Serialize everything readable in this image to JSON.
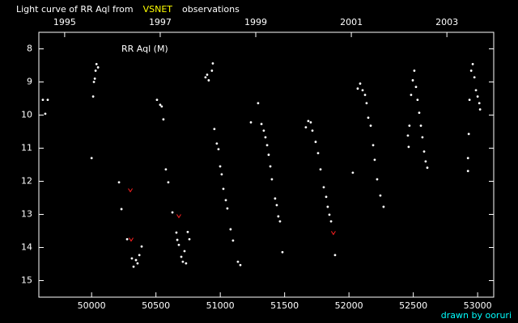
{
  "chart_data": {
    "type": "scatter",
    "title_parts": [
      {
        "text": "Light curve of RR Aql from",
        "color": "#ffffff"
      },
      {
        "text": "VSNET",
        "color": "#ffff00"
      },
      {
        "text": "observations",
        "color": "#ffffff"
      }
    ],
    "annotation": "RR Aql (M)",
    "credit": "drawn by ooruri",
    "credit_color": "#00ffff",
    "xlim": [
      49590,
      53125
    ],
    "xticks": [
      50000,
      50500,
      51000,
      51500,
      52000,
      52500,
      53000
    ],
    "x2lim": [
      1994.46,
      2003.98
    ],
    "x2ticks": [
      1995,
      1997,
      1999,
      2001,
      2003
    ],
    "ylim": [
      15.5,
      7.5
    ],
    "yticks": [
      8,
      9,
      10,
      11,
      12,
      13,
      14,
      15
    ],
    "series": [
      {
        "color": "#ffffff",
        "marker": "dot",
        "x": [
          49621,
          49659,
          49640,
          50000,
          50012,
          50018,
          50025,
          50031,
          50038,
          50050,
          50213,
          50232,
          50276,
          50313,
          50326,
          50345,
          50357,
          50371,
          50389,
          50508,
          50533,
          50545,
          50558,
          50577,
          50596,
          50628,
          50659,
          50666,
          50678,
          50697,
          50709,
          50722,
          50734,
          50747,
          50760,
          50885,
          50898,
          50910,
          50935,
          50942,
          50954,
          50973,
          50986,
          50999,
          51011,
          51024,
          51043,
          51055,
          51080,
          51099,
          51137,
          51156,
          51238,
          51294,
          51320,
          51338,
          51351,
          51364,
          51376,
          51389,
          51401,
          51426,
          51439,
          51451,
          51464,
          51483,
          51665,
          51684,
          51703,
          51716,
          51741,
          51760,
          51779,
          51804,
          51823,
          51835,
          51848,
          51861,
          51892,
          52030,
          52068,
          52087,
          52106,
          52125,
          52137,
          52150,
          52169,
          52188,
          52200,
          52219,
          52244,
          52269,
          52458,
          52464,
          52470,
          52483,
          52496,
          52508,
          52521,
          52533,
          52546,
          52559,
          52571,
          52584,
          52596,
          52609,
          52925,
          52925,
          52931,
          52937,
          52950,
          52962,
          52975,
          52987,
          53000,
          53013,
          53019
        ],
        "values": [
          9.54,
          9.54,
          9.96,
          11.3,
          9.44,
          9.0,
          8.9,
          8.66,
          8.46,
          8.56,
          12.03,
          12.84,
          13.75,
          14.33,
          14.58,
          14.38,
          14.48,
          14.23,
          13.97,
          9.54,
          9.69,
          9.74,
          10.13,
          11.64,
          12.03,
          12.94,
          13.55,
          13.77,
          13.92,
          14.28,
          14.43,
          14.11,
          14.48,
          13.53,
          13.75,
          8.86,
          8.78,
          8.95,
          8.66,
          8.44,
          10.42,
          10.86,
          11.03,
          11.55,
          11.79,
          12.23,
          12.57,
          12.82,
          13.45,
          13.79,
          14.43,
          14.53,
          10.22,
          9.64,
          10.27,
          10.47,
          10.67,
          10.91,
          11.2,
          11.55,
          11.94,
          12.52,
          12.72,
          13.06,
          13.21,
          14.14,
          10.37,
          10.18,
          10.22,
          10.47,
          10.81,
          11.15,
          11.64,
          12.18,
          12.47,
          12.77,
          13.01,
          13.21,
          14.23,
          11.74,
          9.2,
          9.05,
          9.25,
          9.39,
          9.64,
          10.08,
          10.32,
          10.91,
          11.35,
          11.94,
          12.43,
          12.77,
          10.62,
          10.96,
          10.32,
          9.39,
          8.95,
          8.66,
          9.15,
          9.54,
          9.93,
          10.32,
          10.67,
          11.1,
          11.4,
          11.59,
          11.3,
          11.69,
          10.57,
          9.54,
          8.66,
          8.46,
          8.86,
          9.25,
          9.44,
          9.64,
          9.83
        ]
      },
      {
        "color": "#ff2020",
        "marker": "v",
        "x": [
          50301,
          50307,
          50678,
          51879
        ],
        "values": [
          12.28,
          13.77,
          13.06,
          13.57
        ]
      }
    ]
  }
}
